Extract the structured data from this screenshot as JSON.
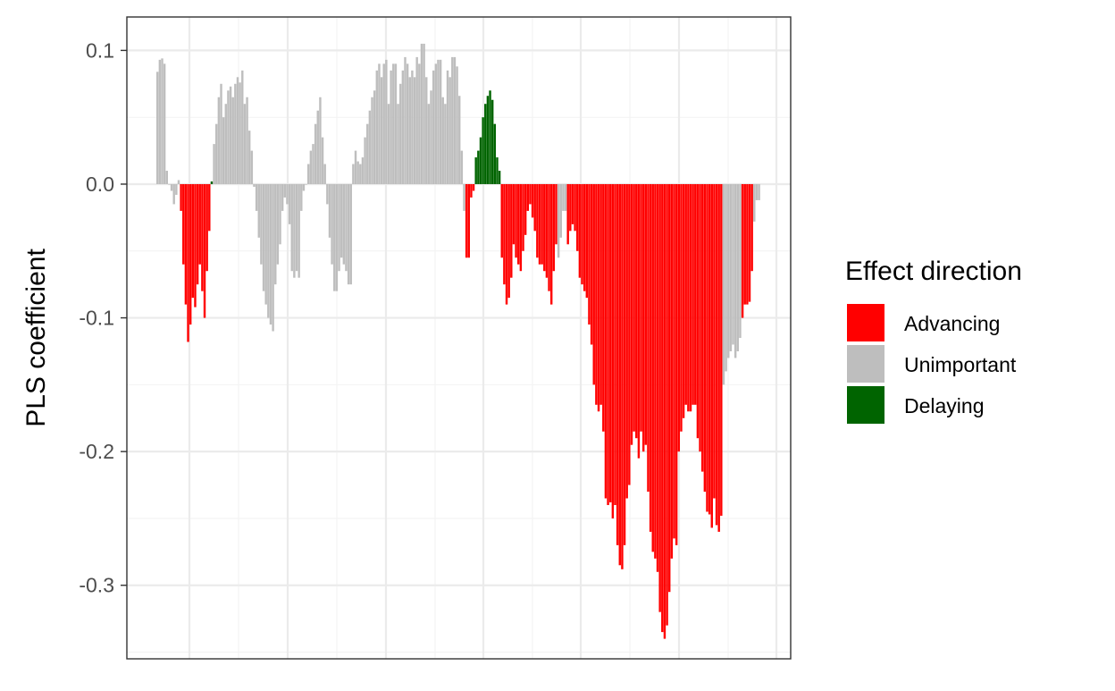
{
  "chart_data": {
    "type": "bar",
    "title": "",
    "xlabel": "",
    "ylabel": "PLS coefficient",
    "ylim": [
      -0.355,
      0.125
    ],
    "yticks": [
      0.1,
      0.0,
      -0.1,
      -0.2,
      -0.3
    ],
    "ytick_labels": [
      "0.1",
      "0.0",
      "-0.1",
      "-0.2",
      "-0.3"
    ],
    "grid": true,
    "legend_position": "right",
    "legend_title": "Effect direction",
    "legend": [
      {
        "key": "advancing",
        "label": "Advancing",
        "color": "#ff0000"
      },
      {
        "key": "unimportant",
        "label": "Unimportant",
        "color": "#bebebe"
      },
      {
        "key": "delaying",
        "label": "Delaying",
        "color": "#006400"
      }
    ],
    "values": [
      0.084,
      0.093,
      0.094,
      0.09,
      0.01,
      0.0,
      -0.005,
      -0.015,
      -0.008,
      0.003,
      -0.02,
      -0.06,
      -0.09,
      -0.118,
      -0.105,
      -0.085,
      -0.092,
      -0.075,
      -0.06,
      -0.08,
      -0.1,
      -0.065,
      -0.035,
      0.002,
      0.03,
      0.045,
      0.065,
      0.075,
      0.05,
      0.06,
      0.07,
      0.073,
      0.065,
      0.075,
      0.08,
      0.076,
      0.085,
      0.06,
      0.065,
      0.04,
      0.025,
      -0.002,
      -0.02,
      -0.04,
      -0.06,
      -0.08,
      -0.09,
      -0.1,
      -0.105,
      -0.11,
      -0.075,
      -0.06,
      -0.045,
      -0.02,
      -0.01,
      -0.015,
      -0.03,
      -0.065,
      -0.07,
      -0.065,
      -0.07,
      -0.02,
      -0.005,
      0.0,
      0.015,
      0.025,
      0.03,
      0.045,
      0.055,
      0.065,
      0.035,
      0.015,
      -0.015,
      -0.04,
      -0.06,
      -0.08,
      -0.08,
      -0.065,
      -0.055,
      -0.06,
      -0.065,
      -0.075,
      -0.075,
      0.015,
      0.025,
      0.017,
      0.015,
      0.02,
      0.035,
      0.045,
      0.055,
      0.065,
      0.07,
      0.085,
      0.09,
      0.08,
      0.09,
      0.093,
      0.06,
      0.085,
      0.09,
      0.09,
      0.06,
      0.075,
      0.085,
      0.095,
      0.09,
      0.08,
      0.085,
      0.08,
      0.095,
      0.09,
      0.105,
      0.105,
      0.08,
      0.06,
      0.07,
      0.085,
      0.09,
      0.093,
      0.093,
      0.065,
      0.06,
      0.085,
      0.08,
      0.095,
      0.095,
      0.088,
      0.066,
      0.025,
      -0.02,
      -0.055,
      -0.055,
      -0.01,
      -0.005,
      0.02,
      0.025,
      0.035,
      0.05,
      0.06,
      0.066,
      0.07,
      0.063,
      0.045,
      0.02,
      0.01,
      -0.055,
      -0.075,
      -0.09,
      -0.085,
      -0.07,
      -0.045,
      -0.055,
      -0.06,
      -0.065,
      -0.05,
      -0.038,
      -0.02,
      -0.015,
      -0.025,
      -0.035,
      -0.055,
      -0.06,
      -0.06,
      -0.065,
      -0.07,
      -0.08,
      -0.09,
      -0.065,
      -0.045,
      -0.055,
      -0.04,
      -0.02,
      -0.02,
      -0.045,
      -0.035,
      -0.03,
      -0.035,
      -0.05,
      -0.07,
      -0.075,
      -0.08,
      -0.085,
      -0.105,
      -0.12,
      -0.15,
      -0.165,
      -0.17,
      -0.165,
      -0.185,
      -0.235,
      -0.24,
      -0.238,
      -0.25,
      -0.24,
      -0.27,
      -0.285,
      -0.288,
      -0.27,
      -0.235,
      -0.225,
      -0.195,
      -0.185,
      -0.19,
      -0.205,
      -0.185,
      -0.2,
      -0.195,
      -0.23,
      -0.26,
      -0.275,
      -0.28,
      -0.29,
      -0.32,
      -0.335,
      -0.34,
      -0.33,
      -0.305,
      -0.28,
      -0.265,
      -0.27,
      -0.2,
      -0.185,
      -0.175,
      -0.165,
      -0.17,
      -0.17,
      -0.165,
      -0.165,
      -0.19,
      -0.2,
      -0.215,
      -0.23,
      -0.245,
      -0.247,
      -0.257,
      -0.235,
      -0.255,
      -0.26,
      -0.248,
      -0.15,
      -0.14,
      -0.13,
      -0.125,
      -0.12,
      -0.13,
      -0.125,
      -0.115,
      -0.1,
      -0.09,
      -0.09,
      -0.088,
      -0.065,
      -0.028,
      -0.012,
      -0.012
    ],
    "colors": [
      "unimportant",
      "unimportant",
      "unimportant",
      "unimportant",
      "unimportant",
      "unimportant",
      "unimportant",
      "unimportant",
      "unimportant",
      "unimportant",
      "advancing",
      "advancing",
      "advancing",
      "advancing",
      "advancing",
      "advancing",
      "advancing",
      "advancing",
      "advancing",
      "advancing",
      "advancing",
      "advancing",
      "advancing",
      "delaying",
      "unimportant",
      "unimportant",
      "unimportant",
      "unimportant",
      "unimportant",
      "unimportant",
      "unimportant",
      "unimportant",
      "unimportant",
      "unimportant",
      "unimportant",
      "unimportant",
      "unimportant",
      "unimportant",
      "unimportant",
      "unimportant",
      "unimportant",
      "unimportant",
      "unimportant",
      "unimportant",
      "unimportant",
      "unimportant",
      "unimportant",
      "unimportant",
      "unimportant",
      "unimportant",
      "unimportant",
      "unimportant",
      "unimportant",
      "unimportant",
      "unimportant",
      "unimportant",
      "unimportant",
      "unimportant",
      "unimportant",
      "unimportant",
      "unimportant",
      "unimportant",
      "unimportant",
      "unimportant",
      "unimportant",
      "unimportant",
      "unimportant",
      "unimportant",
      "unimportant",
      "unimportant",
      "unimportant",
      "unimportant",
      "unimportant",
      "unimportant",
      "unimportant",
      "unimportant",
      "unimportant",
      "unimportant",
      "unimportant",
      "unimportant",
      "unimportant",
      "unimportant",
      "unimportant",
      "unimportant",
      "unimportant",
      "unimportant",
      "unimportant",
      "unimportant",
      "unimportant",
      "unimportant",
      "unimportant",
      "unimportant",
      "unimportant",
      "unimportant",
      "unimportant",
      "unimportant",
      "unimportant",
      "unimportant",
      "unimportant",
      "unimportant",
      "unimportant",
      "unimportant",
      "unimportant",
      "unimportant",
      "unimportant",
      "unimportant",
      "unimportant",
      "unimportant",
      "unimportant",
      "unimportant",
      "unimportant",
      "unimportant",
      "unimportant",
      "unimportant",
      "unimportant",
      "unimportant",
      "unimportant",
      "unimportant",
      "unimportant",
      "unimportant",
      "unimportant",
      "unimportant",
      "unimportant",
      "unimportant",
      "unimportant",
      "unimportant",
      "unimportant",
      "unimportant",
      "unimportant",
      "unimportant",
      "unimportant",
      "advancing",
      "advancing",
      "advancing",
      "advancing",
      "delaying",
      "delaying",
      "delaying",
      "delaying",
      "delaying",
      "delaying",
      "delaying",
      "delaying",
      "delaying",
      "delaying",
      "delaying",
      "advancing",
      "advancing",
      "advancing",
      "advancing",
      "advancing",
      "advancing",
      "advancing",
      "advancing",
      "advancing",
      "advancing",
      "advancing",
      "advancing",
      "advancing",
      "advancing",
      "advancing",
      "advancing",
      "advancing",
      "advancing",
      "advancing",
      "advancing",
      "advancing",
      "advancing",
      "advancing",
      "advancing",
      "unimportant",
      "unimportant",
      "unimportant",
      "unimportant",
      "advancing",
      "advancing",
      "advancing",
      "advancing",
      "advancing",
      "advancing",
      "advancing",
      "advancing",
      "advancing",
      "advancing",
      "advancing",
      "advancing",
      "advancing",
      "advancing",
      "advancing",
      "advancing",
      "advancing",
      "advancing",
      "advancing",
      "advancing",
      "advancing",
      "advancing",
      "advancing",
      "advancing",
      "advancing",
      "advancing",
      "advancing",
      "advancing",
      "advancing",
      "advancing",
      "advancing",
      "advancing",
      "advancing",
      "advancing",
      "advancing",
      "advancing",
      "advancing",
      "advancing",
      "advancing",
      "advancing",
      "advancing",
      "advancing",
      "advancing",
      "advancing",
      "advancing",
      "advancing",
      "advancing",
      "advancing",
      "advancing",
      "advancing",
      "advancing",
      "advancing",
      "advancing",
      "advancing",
      "advancing",
      "advancing",
      "advancing",
      "advancing",
      "advancing",
      "advancing",
      "advancing",
      "advancing",
      "advancing",
      "advancing",
      "advancing",
      "advancing",
      "unimportant",
      "unimportant",
      "unimportant",
      "unimportant",
      "unimportant",
      "unimportant",
      "unimportant",
      "unimportant",
      "advancing",
      "advancing",
      "advancing",
      "advancing",
      "advancing",
      "unimportant",
      "unimportant",
      "unimportant"
    ]
  }
}
